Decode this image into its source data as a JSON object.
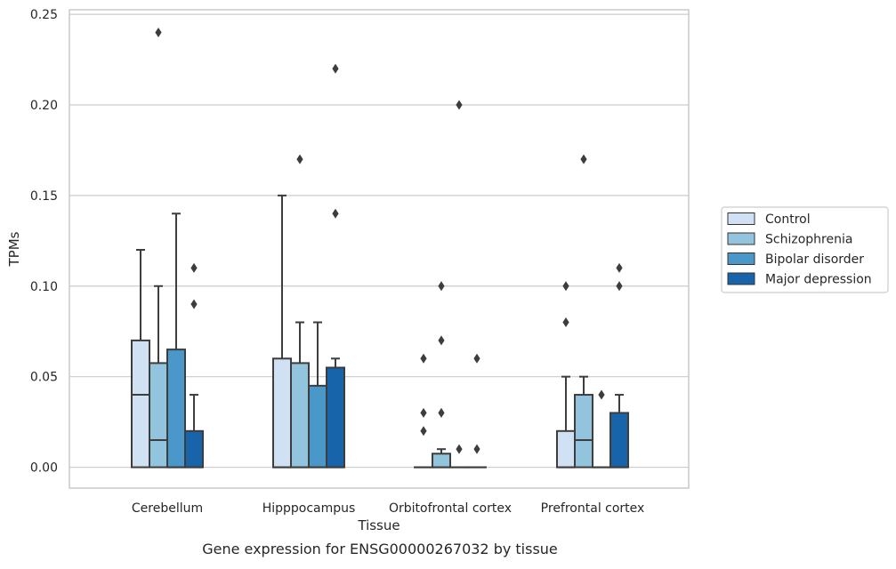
{
  "chart_data": {
    "type": "box",
    "xlabel": "Tissue",
    "ylabel": "TPMs",
    "caption": "Gene expression for ENSG00000267032 by tissue",
    "ylim": [
      -0.0115,
      0.2525
    ],
    "y_ticks": [
      0.0,
      0.05,
      0.1,
      0.15,
      0.2,
      0.25
    ],
    "y_tick_labels": [
      "0.00",
      "0.05",
      "0.10",
      "0.15",
      "0.20",
      "0.25"
    ],
    "grid": "horizontal",
    "legend_position": "outside-right",
    "categories": [
      "Cerebellum",
      "Hipppocampus",
      "Orbitofrontal cortex",
      "Prefrontal cortex"
    ],
    "series": [
      {
        "name": "Control",
        "color": "#cfe1f2",
        "boxes": [
          {
            "whisker_low": 0.0,
            "q1": 0.0,
            "median": 0.04,
            "q3": 0.07,
            "whisker_high": 0.12,
            "outliers": []
          },
          {
            "whisker_low": 0.0,
            "q1": 0.0,
            "median": 0.0,
            "q3": 0.06,
            "whisker_high": 0.15,
            "outliers": []
          },
          {
            "whisker_low": 0.0,
            "q1": 0.0,
            "median": 0.0,
            "q3": 0.0,
            "whisker_high": 0.0,
            "outliers": [
              0.02,
              0.03,
              0.06
            ]
          },
          {
            "whisker_low": 0.0,
            "q1": 0.0,
            "median": 0.0,
            "q3": 0.02,
            "whisker_high": 0.05,
            "outliers": [
              0.08,
              0.1
            ]
          }
        ]
      },
      {
        "name": "Schizophrenia",
        "color": "#93c4de",
        "boxes": [
          {
            "whisker_low": 0.0,
            "q1": 0.0,
            "median": 0.015,
            "q3": 0.0575,
            "whisker_high": 0.1,
            "outliers": [
              0.24
            ]
          },
          {
            "whisker_low": 0.0,
            "q1": 0.0,
            "median": 0.0,
            "q3": 0.0575,
            "whisker_high": 0.08,
            "outliers": [
              0.17
            ]
          },
          {
            "whisker_low": 0.0,
            "q1": 0.0,
            "median": 0.0,
            "q3": 0.0075,
            "whisker_high": 0.01,
            "outliers": [
              0.03,
              0.07,
              0.1
            ]
          },
          {
            "whisker_low": 0.0,
            "q1": 0.0,
            "median": 0.015,
            "q3": 0.04,
            "whisker_high": 0.05,
            "outliers": [
              0.17
            ]
          }
        ]
      },
      {
        "name": "Bipolar disorder",
        "color": "#4a98c9",
        "boxes": [
          {
            "whisker_low": 0.0,
            "q1": 0.0,
            "median": 0.0,
            "q3": 0.065,
            "whisker_high": 0.14,
            "outliers": []
          },
          {
            "whisker_low": 0.0,
            "q1": 0.0,
            "median": 0.0,
            "q3": 0.045,
            "whisker_high": 0.08,
            "outliers": []
          },
          {
            "whisker_low": 0.0,
            "q1": 0.0,
            "median": 0.0,
            "q3": 0.0,
            "whisker_high": 0.0,
            "outliers": [
              0.01,
              0.2
            ]
          },
          {
            "whisker_low": 0.0,
            "q1": 0.0,
            "median": 0.0,
            "q3": 0.0,
            "whisker_high": 0.0,
            "outliers": [
              0.04
            ]
          }
        ]
      },
      {
        "name": "Major depression",
        "color": "#1764ab",
        "boxes": [
          {
            "whisker_low": 0.0,
            "q1": 0.0,
            "median": 0.0,
            "q3": 0.02,
            "whisker_high": 0.04,
            "outliers": [
              0.09,
              0.11
            ]
          },
          {
            "whisker_low": 0.0,
            "q1": 0.0,
            "median": 0.0,
            "q3": 0.055,
            "whisker_high": 0.06,
            "outliers": [
              0.14,
              0.22
            ]
          },
          {
            "whisker_low": 0.0,
            "q1": 0.0,
            "median": 0.0,
            "q3": 0.0,
            "whisker_high": 0.0,
            "outliers": [
              0.01,
              0.06
            ]
          },
          {
            "whisker_low": 0.0,
            "q1": 0.0,
            "median": 0.0,
            "q3": 0.03,
            "whisker_high": 0.04,
            "outliers": [
              0.1,
              0.11
            ]
          }
        ]
      }
    ]
  }
}
